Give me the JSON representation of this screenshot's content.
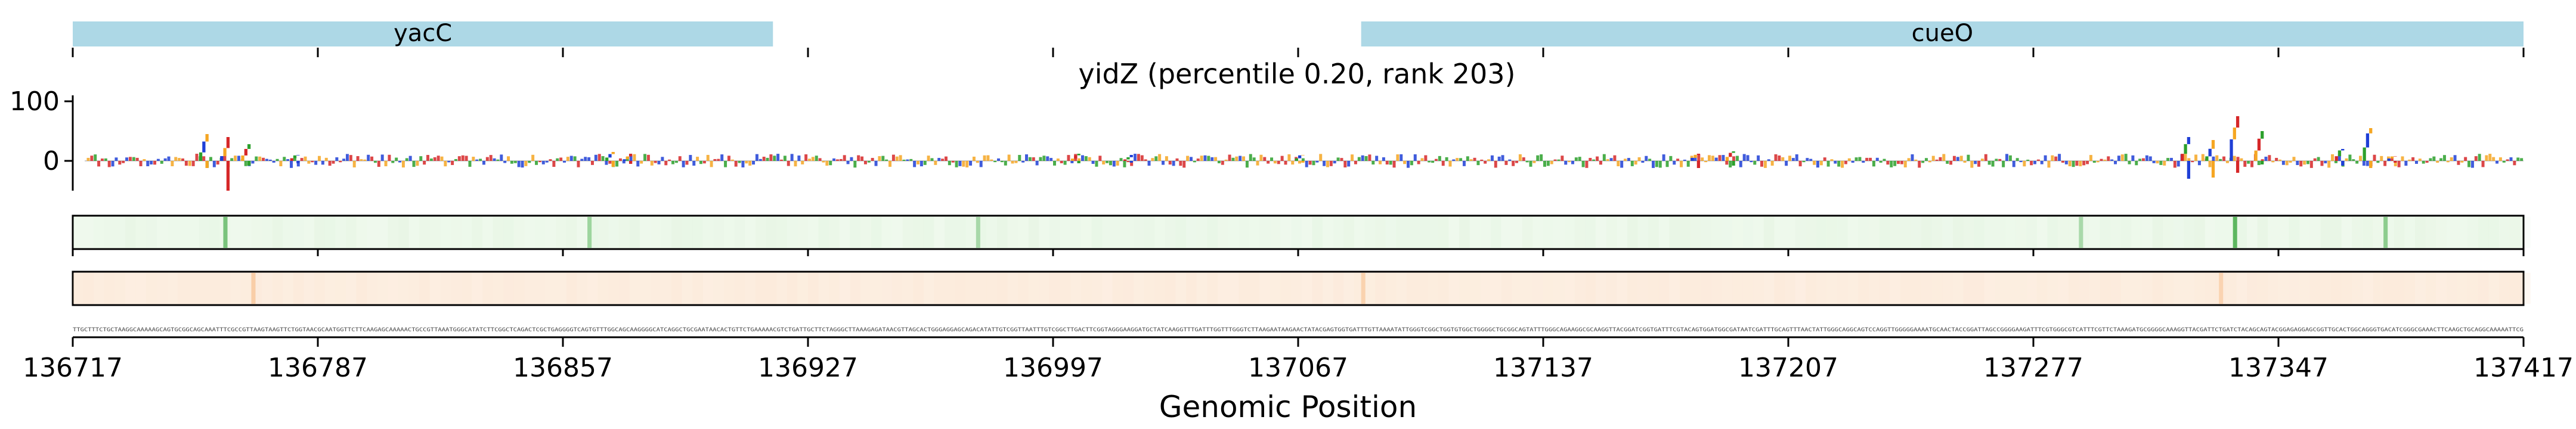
{
  "chart_data": {
    "type": "sequence-logo-track",
    "title": "yidZ (percentile 0.20, rank 203)",
    "xlabel": "Genomic Position",
    "xlim": [
      136717,
      137417
    ],
    "x_ticks": [
      136717,
      136787,
      136857,
      136927,
      136997,
      137067,
      137137,
      137207,
      137277,
      137347,
      137417
    ],
    "x_tick_labels": [
      "136717",
      "136787",
      "136857",
      "136927",
      "136997",
      "137067",
      "137137",
      "137207",
      "137277",
      "137347",
      "137417"
    ],
    "genes": [
      {
        "name": "yacC",
        "start": 136717,
        "end": 136917
      },
      {
        "name": "cueO",
        "start": 137085,
        "end": 137417
      }
    ],
    "logo_ylim": [
      -60,
      120
    ],
    "logo_y_ticks": [
      0,
      100
    ],
    "logo_y_tick_labels": [
      "0",
      "100"
    ],
    "nucleotide_colors": {
      "A": "#2ca02c",
      "C": "#1f3fd6",
      "G": "#f5a623",
      "T": "#d62728"
    },
    "attribution_peaks": [
      {
        "x": 136754,
        "top": 45,
        "bottom": -12
      },
      {
        "x": 136760,
        "top": 40,
        "bottom": -50
      },
      {
        "x": 136766,
        "top": 28,
        "bottom": -8
      },
      {
        "x": 136780,
        "top": 10,
        "bottom": -4
      },
      {
        "x": 136870,
        "top": 15,
        "bottom": -10
      },
      {
        "x": 136875,
        "top": 12,
        "bottom": -5
      },
      {
        "x": 137003,
        "top": 12,
        "bottom": -4
      },
      {
        "x": 137018,
        "top": 10,
        "bottom": -3
      },
      {
        "x": 137067,
        "top": 10,
        "bottom": -3
      },
      {
        "x": 137180,
        "top": 12,
        "bottom": -12
      },
      {
        "x": 137190,
        "top": 16,
        "bottom": -8
      },
      {
        "x": 137320,
        "top": 40,
        "bottom": -30
      },
      {
        "x": 137327,
        "top": 35,
        "bottom": -28
      },
      {
        "x": 137334,
        "top": 75,
        "bottom": -20
      },
      {
        "x": 137341,
        "top": 50,
        "bottom": -6
      },
      {
        "x": 137364,
        "top": 20,
        "bottom": -8
      },
      {
        "x": 137372,
        "top": 55,
        "bottom": -12
      },
      {
        "x": 137379,
        "top": 8,
        "bottom": -3
      }
    ],
    "green_track_peaks": [
      {
        "x": 136760,
        "strength": 0.7
      },
      {
        "x": 136864,
        "strength": 0.3
      },
      {
        "x": 136975,
        "strength": 0.2
      },
      {
        "x": 137290,
        "strength": 0.2
      },
      {
        "x": 137334,
        "strength": 1.0
      },
      {
        "x": 137377,
        "strength": 0.5
      }
    ],
    "orange_track_peaks": [
      {
        "x": 136768,
        "strength": 0.4
      },
      {
        "x": 137085,
        "strength": 0.3
      },
      {
        "x": 137330,
        "strength": 0.25
      }
    ],
    "sequence": "TTGCTTTCTGCTAAGGCAAAAAGCAGTGCGGCAGCAAATTTCGCCGTTAAGTAAGTTCTGGTAACGCAATGGTTCTTCAAGAGCAAAAACTGCCGTTAAATGGGCATATCTTCGGCTCAGACTCGCTGAGGGGTCAGTGTTTGGCAGCAAGGGGCATCAGGCTGCGAATAACACTGTTCTGAAAAACGTCTGATTGCTTCTAGGGCTTAAAGAGATAACGTTAGCACTGGGAGGAGCAGACATATTGTCGGTTAATTTGTCGGCTTGACTTCGGTAGGGAAGGATGCTATCAAGGTTTGATTTGGTTTGGGTCTTAAGAATAAGAACTATACGAGTGGTGATTTGTTAAAATATTGGGTCGGCTGGTGTGGCTGGGGCTGCGGCAGTATTTGGGCAGAAGGCGCAAGGTTACGGATCGGTGATTTCGTACAGTGGATGGCGATAATCGATTTGCAGTTTAACTATTGGGCAGGCAGTCCAGGTTGGGGGAAAATGCAACTACCGGATTAGCCGGGGAAGATTTCGTGGGCGTCATTTCGTTCTAAAGATGCGGGGCAAAGGTTACGATTCTGATCTACAGCAGTACGGAGAGGAGCGGTTGCACTGGCAGGGTGACATCGGGCGAAACTTCAAGCTGCAGGCAAAAATTCG"
  }
}
